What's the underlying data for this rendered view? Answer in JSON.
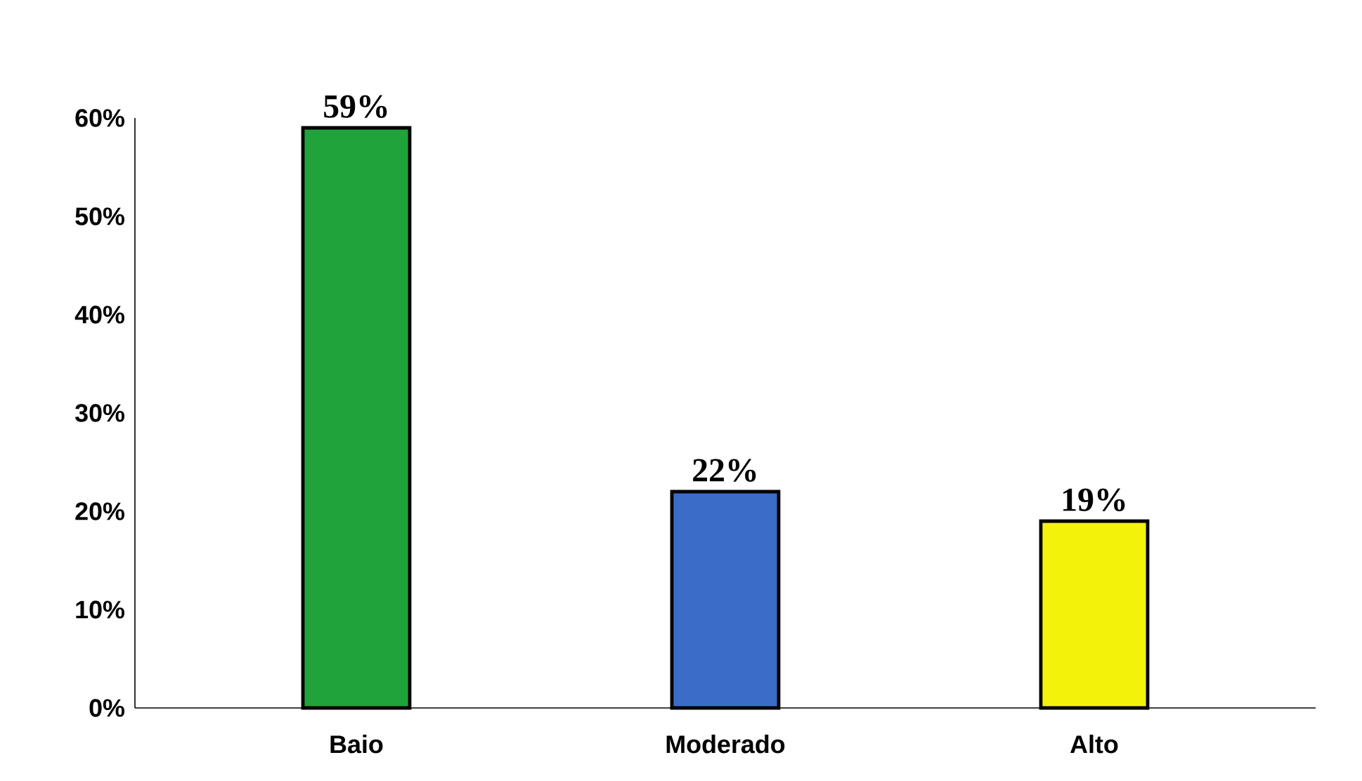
{
  "chart_data": {
    "type": "bar",
    "categories": [
      "Baio",
      "Moderado",
      "Alto"
    ],
    "values": [
      59,
      22,
      19
    ],
    "colors": [
      "#1fa33a",
      "#3a6cc8",
      "#f2f20a"
    ],
    "value_labels": [
      "59%",
      "22%",
      "19%"
    ],
    "ylim": [
      0,
      60
    ],
    "yticks": [
      {
        "value": 0,
        "label": "0%"
      },
      {
        "value": 10,
        "label": "10%"
      },
      {
        "value": 20,
        "label": "20%"
      },
      {
        "value": 30,
        "label": "30%"
      },
      {
        "value": 40,
        "label": "40%"
      },
      {
        "value": 50,
        "label": "50%"
      },
      {
        "value": 60,
        "label": "60%"
      }
    ],
    "grid": false
  }
}
